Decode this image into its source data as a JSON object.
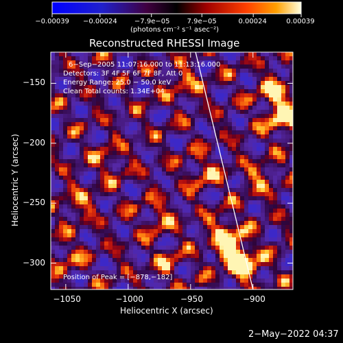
{
  "chart_data": {
    "type": "heatmap",
    "title": "Reconstructed RHESSI Image",
    "xlabel": "Heliocentric X (arcsec)",
    "ylabel": "Heliocentric Y (arcsec)",
    "xlim": [
      -1062,
      -868
    ],
    "ylim": [
      -322,
      -124
    ],
    "x_ticks": [
      -1050,
      -1000,
      -950,
      -900
    ],
    "x_tick_labels": [
      "−1050",
      "−1000",
      "−950",
      "−900"
    ],
    "y_ticks": [
      -150,
      -200,
      -250,
      -300
    ],
    "y_tick_labels": [
      "−150",
      "−200",
      "−250",
      "−300"
    ],
    "colorbar": {
      "range": [
        -0.00039,
        0.00039
      ],
      "ticks": [
        -0.00039,
        -0.00024,
        -7.9e-05,
        7.9e-05,
        0.00024,
        0.00039
      ],
      "tick_labels": [
        "−0.00039",
        "−0.00024",
        "−7.9e−05",
        "7.9e−05",
        "0.00024",
        "0.00039"
      ],
      "unit_label": "(photons cm⁻² s⁻¹ asec⁻²)"
    },
    "annotations": [
      "6−Sep−2005 11:07:16.000 to 11:13:16.000",
      "Detectors: 3F 4F 5F 6F 7F 8F, Att 0",
      "Energy Range: 25.0 − 50.0 keV",
      "Clean     Total counts: 1.34E+04"
    ],
    "peak_label": "Position of Peak = [−878,−182]",
    "peak_position": [
      -878,
      -182
    ],
    "limb_line": [
      [
        -946,
        -124
      ],
      [
        -900,
        -322
      ]
    ],
    "sources": [
      {
        "x": -875,
        "y": -180,
        "intensity": 1.0
      },
      {
        "x": -882,
        "y": -158,
        "intensity": 0.8
      },
      {
        "x": -922,
        "y": -275,
        "intensity": 0.85
      },
      {
        "x": -915,
        "y": -293,
        "intensity": 0.9
      },
      {
        "x": -905,
        "y": -302,
        "intensity": 0.75
      },
      {
        "x": -940,
        "y": -225,
        "intensity": 0.55
      },
      {
        "x": -955,
        "y": -150,
        "intensity": 0.55
      },
      {
        "x": -975,
        "y": -262,
        "intensity": 0.5
      },
      {
        "x": -1040,
        "y": -250,
        "intensity": 0.5
      },
      {
        "x": -1050,
        "y": -295,
        "intensity": 0.45
      },
      {
        "x": -1015,
        "y": -215,
        "intensity": 0.45
      },
      {
        "x": -968,
        "y": -300,
        "intensity": 0.4
      },
      {
        "x": -895,
        "y": -230,
        "intensity": 0.5
      }
    ]
  },
  "footer": {
    "date": "2−May−2022 04:37"
  }
}
